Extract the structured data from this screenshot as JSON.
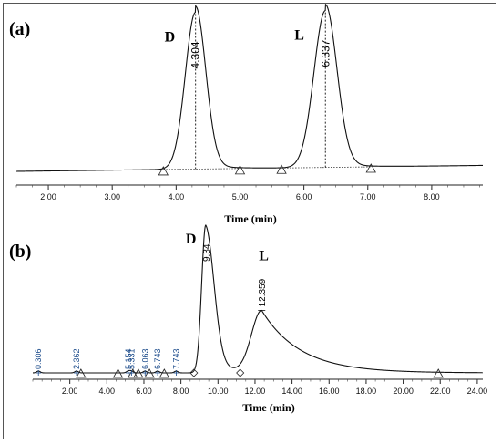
{
  "chart_data": [
    {
      "type": "line",
      "panel_label": "(a)",
      "xlabel": "Time (min)",
      "xlim": [
        1.5,
        8.8
      ],
      "xticks": [
        "2.00",
        "3.00",
        "4.00",
        "5.00",
        "6.00",
        "7.00",
        "8.00"
      ],
      "peaks": [
        {
          "name": "D",
          "retention_time": "4.304",
          "t": 4.304,
          "height": 1.0,
          "width": 0.16
        },
        {
          "name": "L",
          "retention_time": "6.337",
          "t": 6.337,
          "height": 1.0,
          "width": 0.18
        }
      ],
      "integration_markers": [
        3.8,
        5.0,
        5.65,
        7.05
      ]
    },
    {
      "type": "line",
      "panel_label": "(b)",
      "xlabel": "Time (min)",
      "xlim": [
        0,
        24.3
      ],
      "xticks": [
        "2.00",
        "4.00",
        "6.00",
        "8.00",
        "10.00",
        "12.00",
        "14.00",
        "16.00",
        "18.00",
        "20.00",
        "22.00",
        "24.00"
      ],
      "peaks": [
        {
          "name": "D",
          "retention_time": "9.34",
          "t": 9.34,
          "height": 1.0
        },
        {
          "name": "L",
          "retention_time": "12.359",
          "t": 12.359,
          "height": 0.42
        }
      ],
      "minor_peaks": [
        {
          "t": 0.306,
          "label": "0.306"
        },
        {
          "t": 2.362,
          "label": "2.362"
        },
        {
          "t": 5.154,
          "label": "5.154"
        },
        {
          "t": 5.331,
          "label": "5.331"
        },
        {
          "t": 6.063,
          "label": "6.063"
        },
        {
          "t": 6.743,
          "label": "6.743"
        },
        {
          "t": 7.743,
          "label": "7.743"
        }
      ],
      "integration_markers": [
        2.6,
        4.6,
        5.4,
        5.7,
        6.3,
        7.1,
        8.7,
        11.2,
        21.9
      ]
    }
  ]
}
